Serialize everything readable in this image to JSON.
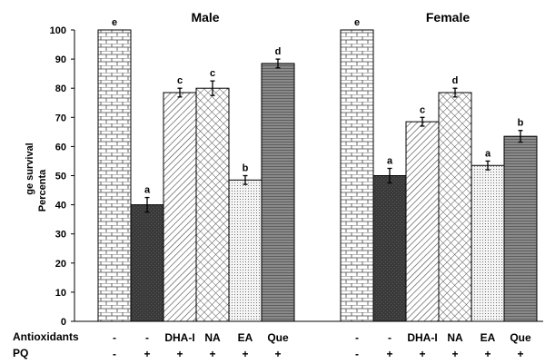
{
  "chart_data": {
    "type": "bar",
    "ylabel_lines": [
      "ge survival",
      "Percenta"
    ],
    "ylim": [
      0,
      100
    ],
    "yticks": [
      0,
      10,
      20,
      30,
      40,
      50,
      60,
      70,
      80,
      90,
      100
    ],
    "grid": false,
    "row_labels": {
      "antioxidants": "Antioxidants",
      "pq": "PQ"
    },
    "panels": [
      {
        "title": "Male",
        "antioxidants": [
          "-",
          "-",
          "DHA-I",
          "NA",
          "EA",
          "Que"
        ],
        "pq": [
          "-",
          "+",
          "+",
          "+",
          "+",
          "+"
        ],
        "values": [
          100,
          40,
          78.5,
          80,
          48.5,
          88.5
        ],
        "errors": [
          0,
          2.5,
          1.5,
          2.5,
          1.5,
          1.5
        ],
        "sig": [
          "e",
          "a",
          "c",
          "c",
          "b",
          "d"
        ],
        "patterns": [
          "brick",
          "dark",
          "diag",
          "cross",
          "dots",
          "hlines"
        ]
      },
      {
        "title": "Female",
        "antioxidants": [
          "-",
          "-",
          "DHA-I",
          "NA",
          "EA",
          "Que"
        ],
        "pq": [
          "-",
          "+",
          "+",
          "+",
          "+",
          "+"
        ],
        "values": [
          100,
          50,
          68.5,
          78.5,
          53.5,
          63.5
        ],
        "errors": [
          0,
          2.5,
          1.5,
          1.5,
          1.5,
          2
        ],
        "sig": [
          "e",
          "a",
          "c",
          "d",
          "a",
          "b"
        ],
        "patterns": [
          "brick",
          "dark",
          "diag",
          "cross",
          "dots",
          "hlines"
        ]
      }
    ]
  }
}
